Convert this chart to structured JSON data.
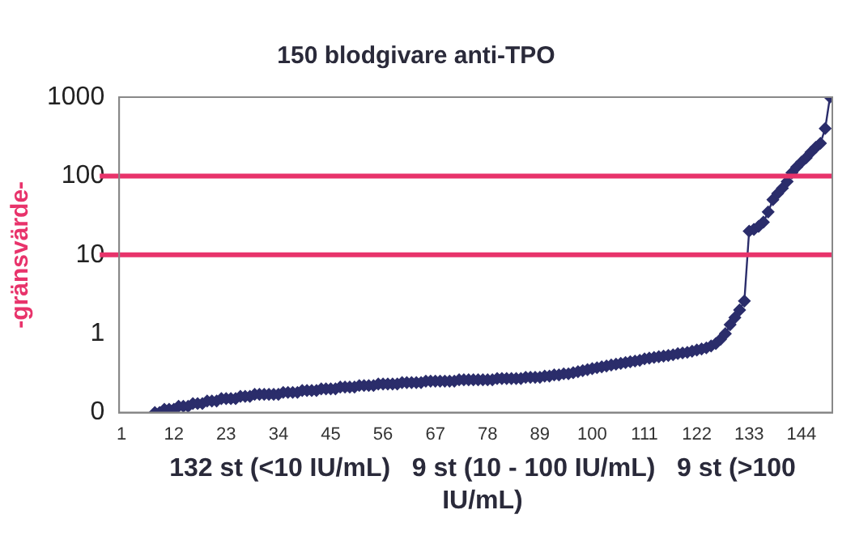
{
  "chart_data": {
    "type": "line",
    "title": "150 blodgivare anti-TPO",
    "ylabel": "-gränsvärde-",
    "xlabel": "132 st (<10 IU/mL)   9 st (10 - 100 IU/mL)   9 st (>100 IU/mL)",
    "x": [
      8,
      9,
      10,
      11,
      12,
      13,
      14,
      15,
      16,
      17,
      18,
      19,
      20,
      21,
      22,
      23,
      24,
      25,
      26,
      27,
      28,
      29,
      30,
      31,
      32,
      33,
      34,
      35,
      36,
      37,
      38,
      39,
      40,
      41,
      42,
      43,
      44,
      45,
      46,
      47,
      48,
      49,
      50,
      51,
      52,
      53,
      54,
      55,
      56,
      57,
      58,
      59,
      60,
      61,
      62,
      63,
      64,
      65,
      66,
      67,
      68,
      69,
      70,
      71,
      72,
      73,
      74,
      75,
      76,
      77,
      78,
      79,
      80,
      81,
      82,
      83,
      84,
      85,
      86,
      87,
      88,
      89,
      90,
      91,
      92,
      93,
      94,
      95,
      96,
      97,
      98,
      99,
      100,
      101,
      102,
      103,
      104,
      105,
      106,
      107,
      108,
      109,
      110,
      111,
      112,
      113,
      114,
      115,
      116,
      117,
      118,
      119,
      120,
      121,
      122,
      123,
      124,
      125,
      126,
      127,
      128,
      129,
      130,
      131,
      132,
      133,
      134,
      135,
      136,
      137,
      138,
      139,
      140,
      141,
      142,
      143,
      144,
      145,
      146,
      147,
      148,
      149,
      150
    ],
    "series": [
      {
        "color": "#2b2d6b",
        "values": [
          0.1,
          0.1,
          0.11,
          0.11,
          0.11,
          0.12,
          0.12,
          0.12,
          0.13,
          0.13,
          0.13,
          0.14,
          0.14,
          0.14,
          0.15,
          0.15,
          0.15,
          0.15,
          0.16,
          0.16,
          0.16,
          0.17,
          0.17,
          0.17,
          0.17,
          0.17,
          0.17,
          0.18,
          0.18,
          0.18,
          0.18,
          0.19,
          0.19,
          0.19,
          0.19,
          0.2,
          0.2,
          0.2,
          0.2,
          0.21,
          0.21,
          0.21,
          0.21,
          0.22,
          0.22,
          0.22,
          0.22,
          0.23,
          0.23,
          0.23,
          0.23,
          0.23,
          0.24,
          0.24,
          0.24,
          0.24,
          0.24,
          0.25,
          0.25,
          0.25,
          0.25,
          0.25,
          0.25,
          0.25,
          0.26,
          0.26,
          0.26,
          0.26,
          0.26,
          0.26,
          0.26,
          0.26,
          0.27,
          0.27,
          0.27,
          0.27,
          0.27,
          0.27,
          0.28,
          0.28,
          0.28,
          0.28,
          0.29,
          0.29,
          0.3,
          0.3,
          0.31,
          0.31,
          0.32,
          0.33,
          0.34,
          0.35,
          0.36,
          0.37,
          0.38,
          0.39,
          0.4,
          0.41,
          0.42,
          0.43,
          0.44,
          0.45,
          0.46,
          0.48,
          0.49,
          0.5,
          0.51,
          0.52,
          0.53,
          0.54,
          0.56,
          0.57,
          0.58,
          0.6,
          0.62,
          0.64,
          0.66,
          0.7,
          0.75,
          0.85,
          1.0,
          1.3,
          1.6,
          2.0,
          2.6,
          20,
          21,
          23,
          26,
          35,
          50,
          60,
          70,
          85,
          110,
          130,
          150,
          170,
          200,
          230,
          260,
          400,
          1000
        ]
      }
    ],
    "xlim": [
      0.5,
      150.5
    ],
    "xticks": [
      1,
      12,
      23,
      34,
      45,
      56,
      67,
      78,
      89,
      100,
      111,
      122,
      133,
      144
    ],
    "log": "y",
    "ylim": [
      0.1,
      1000
    ],
    "yticks": [
      {
        "value": 0.1,
        "label": "0"
      },
      1,
      10,
      100,
      1000
    ],
    "ref_lines": [
      {
        "axis": "y",
        "value": 10,
        "color": "#e8336b"
      },
      {
        "axis": "y",
        "value": 100,
        "color": "#e8336b"
      }
    ],
    "marker": "diamond",
    "legend": false
  }
}
